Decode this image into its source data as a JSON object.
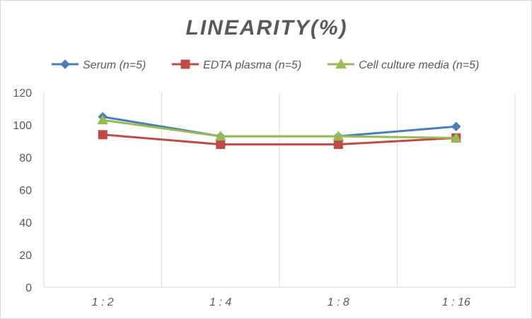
{
  "chart_data": {
    "type": "line",
    "title": "LINEARITY(%)",
    "xlabel": "",
    "ylabel": "",
    "categories": [
      "1:2",
      "1:4",
      "1:8",
      "1:16"
    ],
    "ylim": [
      0,
      120
    ],
    "yticks": [
      0,
      20,
      40,
      60,
      80,
      100,
      120
    ],
    "grid": "vertical",
    "legend_position": "top",
    "series": [
      {
        "name": "Serum (n=5)",
        "values": [
          105,
          93,
          93,
          99
        ],
        "color": "#4a7ebb",
        "marker": "diamond"
      },
      {
        "name": "EDTA plasma (n=5)",
        "values": [
          94,
          88,
          88,
          92
        ],
        "color": "#be4b48",
        "marker": "square"
      },
      {
        "name": "Cell culture media (n=5)",
        "values": [
          103,
          93,
          93,
          92
        ],
        "color": "#98b954",
        "marker": "triangle"
      }
    ]
  }
}
